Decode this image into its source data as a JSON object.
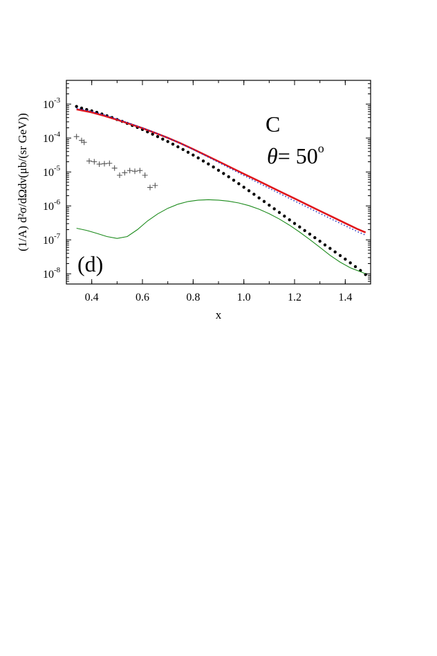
{
  "chart_data": {
    "type": "scatter",
    "title": "",
    "xlabel": "x",
    "ylabel": "(1/A) d²σ/dΩdν(μb/(sr GeV))",
    "xlim": [
      0.3,
      1.5
    ],
    "ylim": [
      5e-09,
      0.005
    ],
    "yscale": "log",
    "grid": false,
    "x_ticks": [
      "0.4",
      "0.6",
      "0.8",
      "1.0",
      "1.2",
      "1.4"
    ],
    "x_tick_values": [
      0.4,
      0.6,
      0.8,
      1.0,
      1.2,
      1.4
    ],
    "y_ticks": [
      {
        "base": "10",
        "exp": "-3",
        "value": 0.001
      },
      {
        "base": "10",
        "exp": "-4",
        "value": 0.0001
      },
      {
        "base": "10",
        "exp": "-5",
        "value": 1e-05
      },
      {
        "base": "10",
        "exp": "-6",
        "value": 1e-06
      },
      {
        "base": "10",
        "exp": "-7",
        "value": 1e-07
      },
      {
        "base": "10",
        "exp": "-8",
        "value": 1e-08
      }
    ],
    "annotations": {
      "target": "C",
      "angle_symbol": "θ",
      "angle_text": "= 50",
      "angle_sup": "o",
      "panel": "(d)"
    },
    "series": [
      {
        "style": "dots",
        "color": "#000000",
        "x": [
          0.34,
          0.36,
          0.38,
          0.4,
          0.42,
          0.44,
          0.46,
          0.48,
          0.5,
          0.52,
          0.54,
          0.56,
          0.58,
          0.6,
          0.62,
          0.64,
          0.66,
          0.68,
          0.7,
          0.72,
          0.74,
          0.76,
          0.78,
          0.8,
          0.82,
          0.84,
          0.86,
          0.88,
          0.9,
          0.92,
          0.94,
          0.96,
          0.98,
          1.0,
          1.02,
          1.04,
          1.06,
          1.08,
          1.1,
          1.12,
          1.14,
          1.16,
          1.18,
          1.2,
          1.22,
          1.24,
          1.26,
          1.28,
          1.3,
          1.32,
          1.34,
          1.36,
          1.38,
          1.4,
          1.42,
          1.44,
          1.46,
          1.48
        ],
        "y": [
          0.00085,
          0.00076,
          0.00069,
          0.00063,
          0.00057,
          0.00051,
          0.00045,
          0.0004,
          0.00035,
          0.00031,
          0.00027,
          0.000235,
          0.000205,
          0.000178,
          0.000152,
          0.00013,
          0.00011,
          9.3e-05,
          7.9e-05,
          6.6e-05,
          5.5e-05,
          4.6e-05,
          3.8e-05,
          3.15e-05,
          2.6e-05,
          2.1e-05,
          1.72e-05,
          1.4e-05,
          1.12e-05,
          9e-06,
          7.2e-06,
          5.7e-06,
          4.5e-06,
          3.55e-06,
          2.8e-06,
          2.2e-06,
          1.72e-06,
          1.35e-06,
          1.05e-06,
          8.2e-07,
          6.4e-07,
          5e-07,
          3.9e-07,
          3.05e-07,
          2.4e-07,
          1.88e-07,
          1.48e-07,
          1.16e-07,
          9.1e-08,
          7.1e-08,
          5.6e-08,
          4.4e-08,
          3.45e-08,
          2.7e-08,
          2.1e-08,
          1.62e-08,
          1.25e-08,
          9.5e-09
        ]
      },
      {
        "style": "crosses",
        "color": "#555555",
        "x": [
          0.34,
          0.36,
          0.37,
          0.39,
          0.41,
          0.43,
          0.45,
          0.47,
          0.49,
          0.51,
          0.53,
          0.55,
          0.57,
          0.59,
          0.61,
          0.63,
          0.65
        ],
        "y": [
          0.00011,
          8.5e-05,
          7.5e-05,
          2.1e-05,
          2e-05,
          1.7e-05,
          1.75e-05,
          1.8e-05,
          1.3e-05,
          8e-06,
          9.5e-06,
          1.1e-05,
          1.05e-05,
          1.1e-05,
          8e-06,
          3.5e-06,
          4e-06
        ]
      },
      {
        "style": "solid",
        "color": "#e0151b",
        "x": [
          0.34,
          0.4,
          0.45,
          0.5,
          0.55,
          0.6,
          0.65,
          0.7,
          0.75,
          0.8,
          0.85,
          0.9,
          0.95,
          1.0,
          1.05,
          1.1,
          1.15,
          1.2,
          1.25,
          1.3,
          1.35,
          1.4,
          1.45,
          1.48
        ],
        "y": [
          0.0007,
          0.00057,
          0.00045,
          0.000345,
          0.00026,
          0.000195,
          0.000142,
          0.000101,
          7e-05,
          4.7e-05,
          3.1e-05,
          2.05e-05,
          1.34e-05,
          8.8e-06,
          5.8e-06,
          3.8e-06,
          2.5e-06,
          1.65e-06,
          1.08e-06,
          7.1e-07,
          4.7e-07,
          3.1e-07,
          2.05e-07,
          1.65e-07
        ]
      },
      {
        "style": "dotted",
        "color": "#1f2fbf",
        "x": [
          0.34,
          0.4,
          0.45,
          0.5,
          0.55,
          0.6,
          0.65,
          0.7,
          0.75,
          0.8,
          0.85,
          0.9,
          0.95,
          1.0,
          1.05,
          1.1,
          1.15,
          1.2,
          1.25,
          1.3,
          1.35,
          1.4,
          1.45,
          1.48
        ],
        "y": [
          0.00075,
          0.00061,
          0.00048,
          0.000365,
          0.00027,
          0.0002,
          0.000144,
          0.000101,
          6.9e-05,
          4.6e-05,
          2.98e-05,
          1.92e-05,
          1.23e-05,
          7.9e-06,
          5.1e-06,
          3.3e-06,
          2.15e-06,
          1.4e-06,
          9.2e-07,
          6e-07,
          3.95e-07,
          2.6e-07,
          1.72e-07,
          1.38e-07
        ]
      },
      {
        "style": "solid-thin",
        "color": "#1a8a1a",
        "x": [
          0.34,
          0.38,
          0.42,
          0.46,
          0.5,
          0.54,
          0.58,
          0.62,
          0.66,
          0.7,
          0.74,
          0.78,
          0.82,
          0.86,
          0.9,
          0.94,
          0.98,
          1.02,
          1.06,
          1.1,
          1.14,
          1.18,
          1.22,
          1.26,
          1.3,
          1.34,
          1.38,
          1.42,
          1.46,
          1.48
        ],
        "y": [
          2.2e-07,
          1.9e-07,
          1.55e-07,
          1.25e-07,
          1.1e-07,
          1.25e-07,
          2e-07,
          3.6e-07,
          5.8e-07,
          8.5e-07,
          1.12e-06,
          1.35e-06,
          1.48e-06,
          1.52e-06,
          1.48e-06,
          1.38e-06,
          1.22e-06,
          1.02e-06,
          8e-07,
          5.9e-07,
          4.1e-07,
          2.7e-07,
          1.7e-07,
          1.02e-07,
          6e-08,
          3.5e-08,
          2.2e-08,
          1.5e-08,
          1.15e-08,
          1e-08
        ]
      }
    ]
  }
}
